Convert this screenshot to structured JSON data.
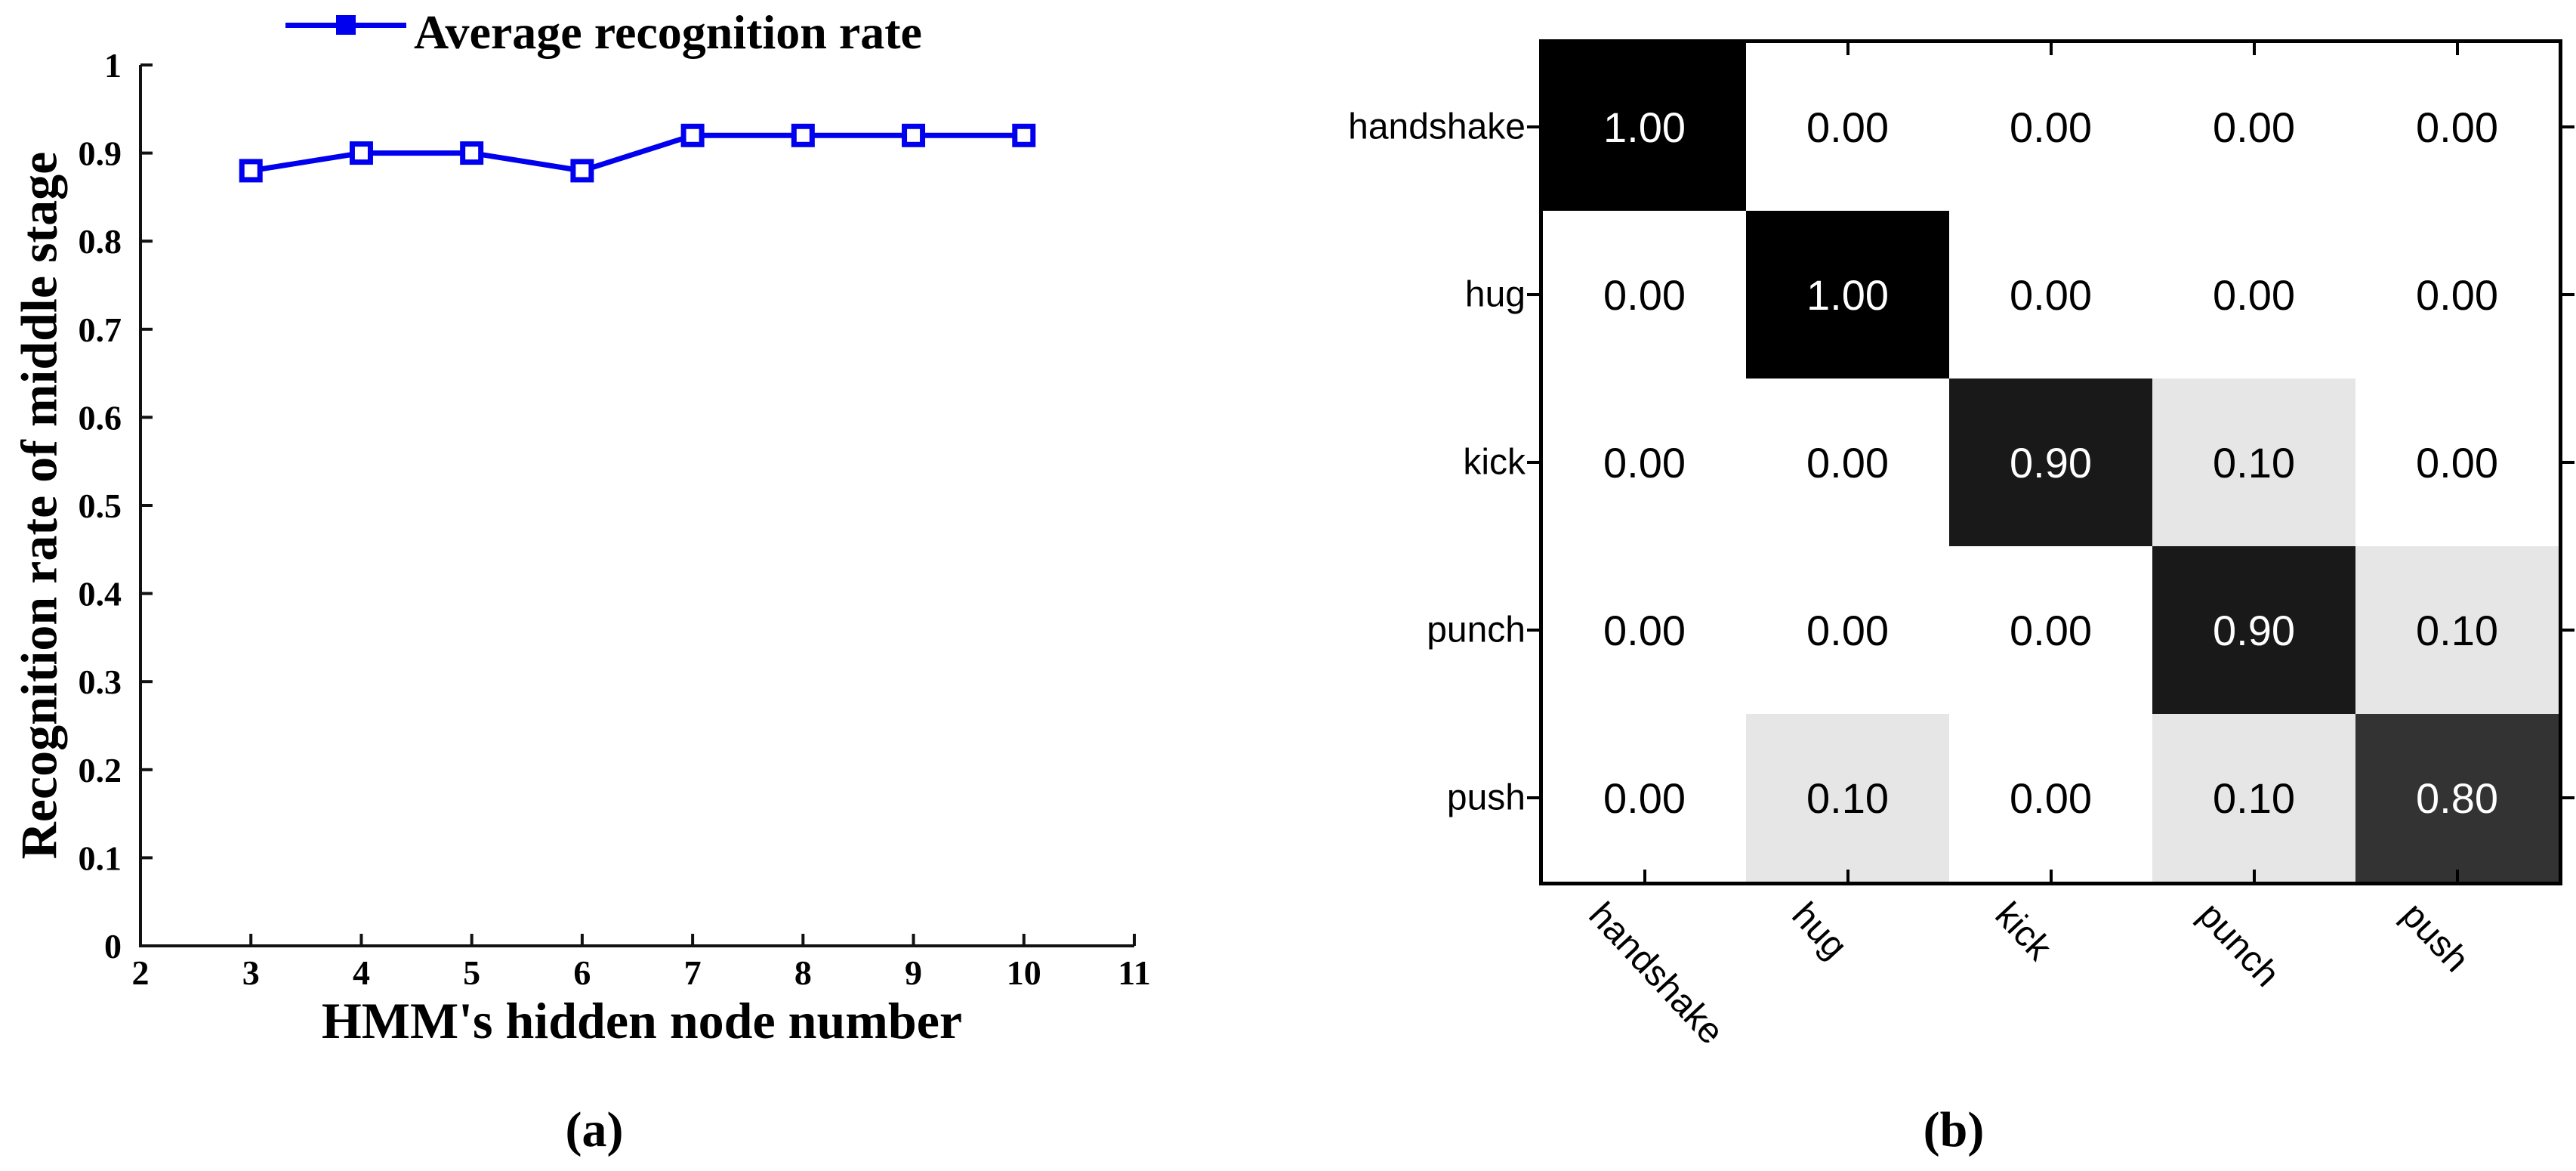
{
  "captions": {
    "a": "(a)",
    "b": "(b)"
  },
  "chart_data": [
    {
      "type": "line",
      "title": "",
      "legend": [
        "Average recognition rate"
      ],
      "legend_position": "top",
      "xlabel": "HMM's hidden node number",
      "ylabel": "Recognition rate of middle stage",
      "x": [
        3,
        4,
        5,
        6,
        7,
        8,
        9,
        10
      ],
      "series": [
        {
          "name": "Average recognition rate",
          "values": [
            0.88,
            0.9,
            0.9,
            0.88,
            0.92,
            0.92,
            0.92,
            0.92
          ]
        }
      ],
      "xlim": [
        2,
        11
      ],
      "ylim": [
        0,
        1
      ],
      "xticks": [
        2,
        3,
        4,
        5,
        6,
        7,
        8,
        9,
        10,
        11
      ],
      "xticklabels": [
        "2",
        "3",
        "4",
        "5",
        "6",
        "7",
        "8",
        "9",
        "10",
        "11"
      ],
      "yticks": [
        0,
        0.1,
        0.2,
        0.3,
        0.4,
        0.5,
        0.6,
        0.7,
        0.8,
        0.9,
        1
      ],
      "yticklabels": [
        "0",
        "0.1",
        "0.2",
        "0.3",
        "0.4",
        "0.5",
        "0.6",
        "0.7",
        "0.8",
        "0.9",
        "1"
      ],
      "grid": false,
      "line_color": "#0000ee",
      "marker": "square"
    },
    {
      "type": "heatmap",
      "title": "",
      "rows": [
        "handshake",
        "hug",
        "kick",
        "punch",
        "push"
      ],
      "cols": [
        "handshake",
        "hug",
        "kick",
        "punch",
        "push"
      ],
      "values": [
        [
          1.0,
          0.0,
          0.0,
          0.0,
          0.0
        ],
        [
          0.0,
          1.0,
          0.0,
          0.0,
          0.0
        ],
        [
          0.0,
          0.0,
          0.9,
          0.1,
          0.0
        ],
        [
          0.0,
          0.0,
          0.0,
          0.9,
          0.1
        ],
        [
          0.0,
          0.1,
          0.0,
          0.1,
          0.8
        ]
      ],
      "value_format": "0.00",
      "colormap": "grayscale-inverted",
      "color_min": "#ffffff",
      "color_max": "#000000"
    }
  ]
}
